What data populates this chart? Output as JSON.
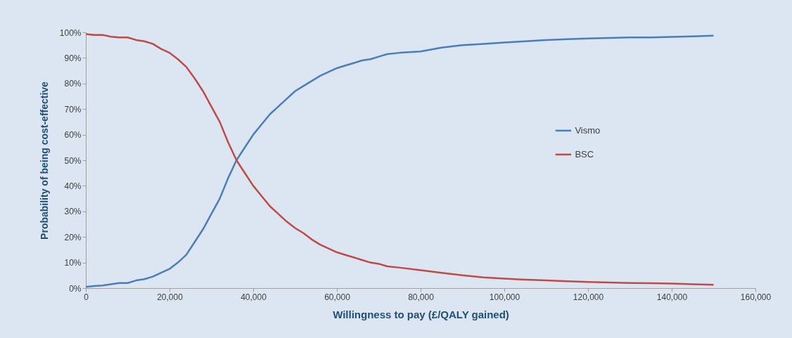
{
  "chart_data": {
    "type": "line",
    "xlabel": "Willingness to pay (£/QALY gained)",
    "ylabel": "Probability of being cost-effective",
    "x": [
      0,
      2000,
      4000,
      6000,
      8000,
      10000,
      12000,
      14000,
      16000,
      18000,
      20000,
      22000,
      24000,
      26000,
      28000,
      30000,
      32000,
      34000,
      36000,
      38000,
      40000,
      42000,
      44000,
      46000,
      48000,
      50000,
      52000,
      54000,
      56000,
      58000,
      60000,
      62000,
      64000,
      66000,
      68000,
      70000,
      72000,
      75000,
      80000,
      85000,
      90000,
      95000,
      100000,
      105000,
      110000,
      115000,
      120000,
      125000,
      130000,
      135000,
      140000,
      145000,
      150000
    ],
    "series": [
      {
        "name": "Vismo",
        "color": "#4a7ebb",
        "values": [
          0.5,
          0.8,
          1,
          1.5,
          2,
          2,
          3,
          3.5,
          4.5,
          6,
          7.5,
          10,
          13,
          18,
          23,
          29,
          35,
          43,
          50,
          55,
          60,
          64,
          68,
          71,
          74,
          77,
          79,
          81,
          83,
          84.5,
          86,
          87,
          88,
          89,
          89.5,
          90.5,
          91.5,
          92,
          92.5,
          94,
          95,
          95.5,
          96,
          96.5,
          97,
          97.3,
          97.6,
          97.8,
          98,
          98,
          98.2,
          98.4,
          98.7
        ]
      },
      {
        "name": "BSC",
        "color": "#be4b48",
        "values": [
          99.3,
          99,
          99,
          98.3,
          98,
          98,
          97,
          96.5,
          95.5,
          93.5,
          92,
          89.5,
          86.5,
          82,
          77,
          71,
          65,
          57,
          50,
          45,
          40,
          36,
          32,
          29,
          26,
          23.5,
          21.5,
          19,
          17,
          15.5,
          14,
          13,
          12,
          11,
          10,
          9.5,
          8.5,
          8,
          7,
          6,
          5,
          4.2,
          3.7,
          3.3,
          3,
          2.7,
          2.4,
          2.2,
          2,
          1.9,
          1.8,
          1.5,
          1.3
        ]
      }
    ],
    "xlim": [
      0,
      160000
    ],
    "xticks": [
      {
        "value": 0,
        "label": "0"
      },
      {
        "value": 20000,
        "label": "20,000"
      },
      {
        "value": 40000,
        "label": "40,000"
      },
      {
        "value": 60000,
        "label": "60,000"
      },
      {
        "value": 80000,
        "label": "80,000"
      },
      {
        "value": 100000,
        "label": "100,000"
      },
      {
        "value": 120000,
        "label": "120,000"
      },
      {
        "value": 140000,
        "label": "140,000"
      },
      {
        "value": 160000,
        "label": "160,000"
      }
    ],
    "ylim": [
      0,
      100
    ],
    "yticks": [
      {
        "value": 0,
        "label": "0%"
      },
      {
        "value": 10,
        "label": "10%"
      },
      {
        "value": 20,
        "label": "20%"
      },
      {
        "value": 30,
        "label": "30%"
      },
      {
        "value": 40,
        "label": "40%"
      },
      {
        "value": 50,
        "label": "50%"
      },
      {
        "value": 60,
        "label": "60%"
      },
      {
        "value": 70,
        "label": "70%"
      },
      {
        "value": 80,
        "label": "80%"
      },
      {
        "value": 90,
        "label": "90%"
      },
      {
        "value": 100,
        "label": "100%"
      }
    ],
    "legend": "right",
    "grid": false,
    "marker": "none",
    "line_style": "solid"
  }
}
